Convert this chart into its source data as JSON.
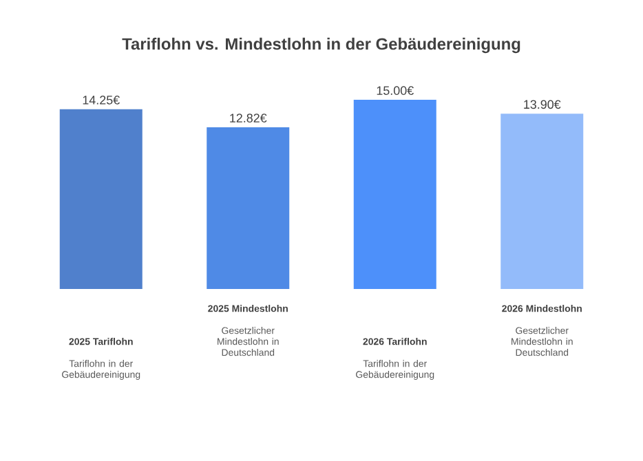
{
  "chart_data": {
    "type": "bar",
    "title": "Tariflohn vs. Mindestlohn in der Gebäudereinigung",
    "categories": [
      "2025 Tariflohn",
      "2025 Mindestlohn",
      "2026 Tariflohn",
      "2026 Mindestlohn"
    ],
    "values": [
      14.25,
      12.82,
      15.0,
      13.9
    ],
    "value_labels": [
      "14.25€",
      "12.82€",
      "15.00€",
      "13.90€"
    ],
    "colors": [
      "#5080cc",
      "#4f8ae6",
      "#4d90fa",
      "#93bbfa"
    ],
    "annotations": [
      "Tariflohn in der Gebäudereinigung",
      "Gesetzlicher Mindestlohn in Deutschland",
      "Tariflohn in der Gebäudereinigung",
      "Gesetzlicher Mindestlohn in Deutschland"
    ]
  }
}
